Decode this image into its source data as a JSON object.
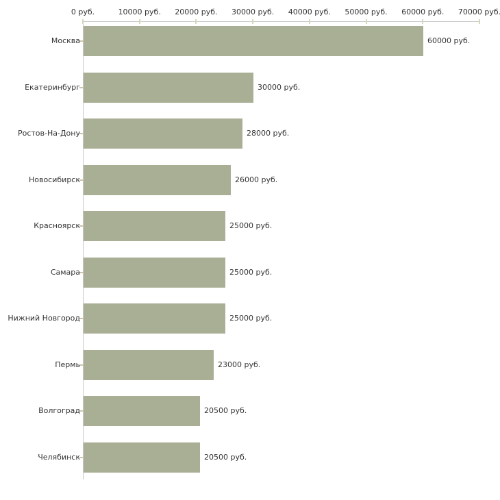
{
  "chart_data": {
    "type": "bar",
    "orientation": "horizontal",
    "categories": [
      "Москва",
      "Екатеринбург",
      "Ростов-На-Дону",
      "Новосибирск",
      "Красноярск",
      "Самара",
      "Нижний Новгород",
      "Пермь",
      "Волгоград",
      "Челябинск"
    ],
    "values": [
      60000,
      30000,
      28000,
      26000,
      25000,
      25000,
      25000,
      23000,
      20500,
      20500
    ],
    "value_labels": [
      "60000 руб.",
      "30000 руб.",
      "28000 руб.",
      "26000 руб.",
      "25000 руб.",
      "25000 руб.",
      "25000 руб.",
      "23000 руб.",
      "20500 руб.",
      "20500 руб."
    ],
    "x_ticks": [
      0,
      10000,
      20000,
      30000,
      40000,
      50000,
      60000,
      70000
    ],
    "x_tick_labels": [
      "0 руб.",
      "10000 руб.",
      "20000 руб.",
      "30000 руб.",
      "40000 руб.",
      "50000 руб.",
      "60000 руб.",
      "70000 руб."
    ],
    "xlim": [
      0,
      70000
    ],
    "unit": "руб.",
    "grid": false,
    "axis_position": "top",
    "colors": {
      "bar": "#a9af94",
      "axis_line": "#c9c9c9",
      "x_tick": "#d6d8b8",
      "y_tick": "#cdc4a6",
      "text": "#333333",
      "background": "#ffffff"
    }
  }
}
